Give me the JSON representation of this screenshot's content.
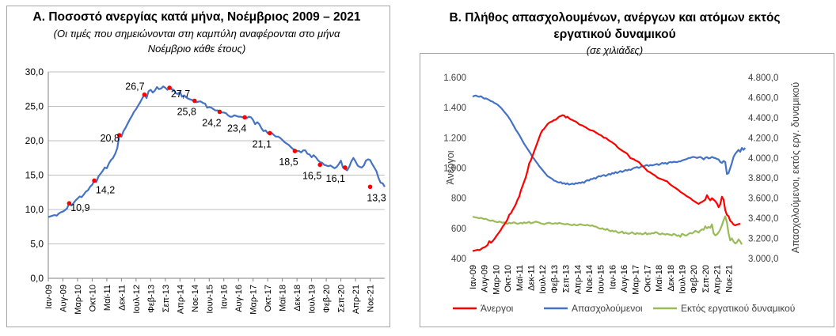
{
  "chart_data": [
    {
      "type": "line",
      "title": "Α. Ποσοστό ανεργίας κατά μήνα, Νοέμβριος 2009 – 2021",
      "subtitle_lines": [
        "(Οι τιμές που σημειώνονται στη καμπύλη αναφέρονται στο μήνα",
        "Νοέμβριο κάθε έτους)"
      ],
      "ylim": [
        0,
        30
      ],
      "yticks": [
        "0,0",
        "5,0",
        "10,0",
        "15,0",
        "20,0",
        "25,0",
        "30,0"
      ],
      "grid": true,
      "legend": "none",
      "colors": {
        "line": "#4472c4",
        "marker": "#ff0000"
      },
      "x_tick_labels": [
        "Ιαν-09",
        "Αυγ-09",
        "Μαρ-10",
        "Οκτ-10",
        "Μαϊ-11",
        "Δεκ-11",
        "Ιουλ-12",
        "Φεβ-13",
        "Σεπ-13",
        "Απρ-14",
        "Νοε-14",
        "Ιουν-15",
        "Ιαν-16",
        "Αυγ-16",
        "Μαρ-17",
        "Οκτ-17",
        "Μαϊ-18",
        "Δεκ-18",
        "Ιουλ-19",
        "Φεβ-20",
        "Σεπ-20",
        "Απρ-21",
        "Νοε-21"
      ],
      "x_start": "Ιαν-09",
      "series": [
        {
          "values": [
            8.9,
            9.0,
            9.1,
            9.2,
            9.1,
            9.4,
            9.6,
            9.7,
            9.9,
            10.2,
            10.9,
            10.6,
            10.9,
            11.3,
            11.6,
            11.9,
            11.8,
            12.2,
            12.6,
            12.8,
            13.3,
            13.6,
            14.2,
            14.0,
            14.8,
            15.2,
            15.6,
            16.1,
            16.0,
            16.7,
            17.2,
            17.5,
            18.1,
            18.9,
            20.8,
            20.6,
            21.4,
            21.9,
            22.5,
            23.1,
            23.6,
            24.2,
            24.6,
            25.1,
            25.6,
            26.2,
            26.7,
            26.2,
            27.2,
            27.4,
            27.0,
            27.3,
            27.8,
            27.5,
            27.6,
            27.9,
            27.7,
            27.4,
            27.8,
            27.5,
            27.4,
            26.9,
            26.8,
            27.1,
            26.4,
            26.6,
            26.3,
            26.1,
            26.0,
            25.9,
            25.8,
            25.6,
            25.7,
            25.7,
            25.5,
            25.4,
            24.8,
            24.9,
            24.8,
            24.6,
            24.4,
            24.4,
            24.2,
            24.1,
            24.1,
            24.0,
            23.7,
            23.5,
            23.5,
            23.7,
            23.6,
            23.5,
            23.5,
            23.4,
            23.4,
            23.3,
            23.5,
            23.4,
            23.0,
            22.4,
            22.7,
            22.4,
            21.8,
            21.4,
            21.5,
            21.1,
            21.1,
            21.1,
            20.8,
            20.6,
            20.6,
            20.4,
            20.1,
            19.8,
            19.6,
            19.4,
            19.1,
            18.8,
            18.7,
            18.5,
            18.5,
            18.3,
            18.6,
            18.6,
            18.1,
            18.0,
            17.6,
            17.9,
            17.6,
            17.2,
            16.9,
            16.8,
            16.5,
            16.4,
            16.3,
            16.4,
            16.2,
            16.0,
            16.2,
            16.6,
            17.1,
            16.1,
            15.9,
            15.7,
            16.2,
            17.0,
            17.5,
            17.0,
            16.4,
            16.2,
            16.1,
            16.4,
            17.1,
            17.3,
            17.2,
            16.6,
            16.1,
            15.6,
            14.6,
            13.9,
            13.8,
            13.3
          ]
        }
      ],
      "annotations": [
        {
          "x": "Νοε-09",
          "value": 10.9,
          "label": "10,9"
        },
        {
          "x": "Νοε-10",
          "value": 14.2,
          "label": "14,2"
        },
        {
          "x": "Νοε-11",
          "value": 20.8,
          "label": "20,8"
        },
        {
          "x": "Νοε-12",
          "value": 26.7,
          "label": "26,7"
        },
        {
          "x": "Νοε-13",
          "value": 27.7,
          "label": "27,7"
        },
        {
          "x": "Νοε-14",
          "value": 25.8,
          "label": "25,8"
        },
        {
          "x": "Νοε-15",
          "value": 24.2,
          "label": "24,2"
        },
        {
          "x": "Νοε-16",
          "value": 23.4,
          "label": "23,4"
        },
        {
          "x": "Νοε-17",
          "value": 21.1,
          "label": "21,1"
        },
        {
          "x": "Νοε-18",
          "value": 18.5,
          "label": "18,5"
        },
        {
          "x": "Νοε-19",
          "value": 16.5,
          "label": "16,5"
        },
        {
          "x": "Νοε-20",
          "value": 16.1,
          "label": "16,1"
        },
        {
          "x": "Νοε-21",
          "value": 13.3,
          "label": "13,3"
        }
      ]
    },
    {
      "type": "line",
      "title_lines": [
        "Β. Πλήθος απασχολουμένων, ανέργων και ατόμων εκτός",
        "εργατικού δυναμικού"
      ],
      "subtitle": "(σε χιλιάδες)",
      "ylabel_left": "Άνεργοι",
      "ylabel_right": "Απασχολούμενοι, εκτός εργ. δυναμικού",
      "ylim_left": [
        400,
        1600
      ],
      "ylim_right": [
        3000,
        4800
      ],
      "yticks_left": [
        "400",
        "600",
        "800",
        "1.000",
        "1.200",
        "1.400",
        "1.600"
      ],
      "yticks_right": [
        "3.000,0",
        "3.200,0",
        "3.400,0",
        "3.600,0",
        "3.800,0",
        "4.000,0",
        "4.200,0",
        "4.400,0",
        "4.600,0",
        "4.800,0"
      ],
      "grid": false,
      "legend": "bottom",
      "x_tick_labels": [
        "Ιαν-09",
        "Αυγ-09",
        "Μαρ-10",
        "Οκτ-10",
        "Μαϊ-11",
        "Δεκ-11",
        "Ιουλ-12",
        "Φεβ-13",
        "Σεπ-13",
        "Απρ-14",
        "Νοε-14",
        "Ιουν-15",
        "Ιαν-16",
        "Αυγ-16",
        "Μαρ-17",
        "Οκτ-17",
        "Μαϊ-18",
        "Δεκ-18",
        "Ιουλ-19",
        "Φεβ-20",
        "Σεπ-20",
        "Απρ-21",
        "Νοε-21"
      ],
      "series": [
        {
          "name": "Άνεργοι",
          "axis": "left",
          "color": "#ff0000",
          "values": [
            450,
            452,
            455,
            458,
            455,
            462,
            470,
            474,
            480,
            490,
            515,
            505,
            515,
            528,
            545,
            560,
            575,
            590,
            610,
            625,
            640,
            660,
            690,
            700,
            720,
            740,
            760,
            790,
            810,
            850,
            880,
            910,
            940,
            980,
            1030,
            1050,
            1080,
            1110,
            1140,
            1170,
            1200,
            1230,
            1250,
            1260,
            1275,
            1290,
            1300,
            1305,
            1310,
            1318,
            1320,
            1330,
            1340,
            1345,
            1350,
            1348,
            1335,
            1340,
            1330,
            1322,
            1318,
            1312,
            1308,
            1300,
            1290,
            1285,
            1282,
            1275,
            1270,
            1262,
            1255,
            1250,
            1248,
            1244,
            1236,
            1230,
            1222,
            1218,
            1210,
            1200,
            1200,
            1192,
            1183,
            1176,
            1170,
            1162,
            1154,
            1140,
            1130,
            1122,
            1115,
            1108,
            1102,
            1095,
            1080,
            1065,
            1062,
            1058,
            1050,
            1045,
            1040,
            1028,
            1015,
            1005,
            995,
            982,
            975,
            970,
            962,
            955,
            948,
            938,
            932,
            928,
            924,
            920,
            915,
            912,
            900,
            890,
            882,
            875,
            868,
            860,
            852,
            842,
            835,
            828,
            820,
            812,
            806,
            800,
            790,
            782,
            775,
            768,
            762,
            770,
            775,
            782,
            790,
            820,
            800,
            785,
            800,
            790,
            780,
            765,
            740,
            760,
            810,
            790,
            720,
            690,
            680,
            650,
            640,
            625,
            620,
            625,
            628,
            630
          ]
        },
        {
          "name": "Απασχολούμενοι",
          "axis": "right",
          "color": "#4472c4",
          "values": [
            4610,
            4618,
            4620,
            4612,
            4608,
            4614,
            4600,
            4590,
            4592,
            4585,
            4575,
            4565,
            4560,
            4548,
            4540,
            4530,
            4515,
            4500,
            4480,
            4460,
            4440,
            4420,
            4395,
            4370,
            4340,
            4310,
            4280,
            4255,
            4230,
            4200,
            4170,
            4140,
            4115,
            4090,
            4065,
            4040,
            4010,
            3990,
            3965,
            3945,
            3920,
            3900,
            3880,
            3860,
            3840,
            3820,
            3810,
            3800,
            3790,
            3775,
            3770,
            3760,
            3755,
            3760,
            3745,
            3750,
            3740,
            3748,
            3735,
            3740,
            3745,
            3738,
            3750,
            3745,
            3755,
            3750,
            3760,
            3752,
            3770,
            3780,
            3775,
            3790,
            3790,
            3800,
            3795,
            3810,
            3820,
            3815,
            3825,
            3830,
            3820,
            3830,
            3840,
            3835,
            3850,
            3845,
            3860,
            3850,
            3860,
            3870,
            3860,
            3870,
            3880,
            3875,
            3885,
            3880,
            3890,
            3900,
            3905,
            3910,
            3900,
            3910,
            3920,
            3915,
            3925,
            3930,
            3920,
            3930,
            3925,
            3930,
            3935,
            3940,
            3930,
            3940,
            3950,
            3945,
            3950,
            3940,
            3955,
            3960,
            3955,
            3962,
            3960,
            3958,
            3965,
            3965,
            3975,
            3980,
            3985,
            3990,
            4000,
            4000,
            4008,
            4010,
            4005,
            4000,
            4005,
            4010,
            4000,
            3985,
            4002,
            4008,
            3995,
            4000,
            4010,
            4002,
            3998,
            3990,
            3985,
            3960,
            3950,
            3970,
            3960,
            3840,
            3850,
            3900,
            3950,
            4010,
            4040,
            4060,
            4080,
            4060,
            4100,
            4080,
            4100
          ]
        },
        {
          "name": "Εκτός εργατικού δυναμικού",
          "axis": "right",
          "color": "#9bbb59",
          "values": [
            3415,
            3412,
            3408,
            3405,
            3400,
            3405,
            3398,
            3392,
            3395,
            3385,
            3378,
            3375,
            3380,
            3370,
            3365,
            3360,
            3368,
            3362,
            3355,
            3360,
            3350,
            3345,
            3355,
            3350,
            3355,
            3360,
            3352,
            3345,
            3350,
            3355,
            3348,
            3360,
            3352,
            3358,
            3365,
            3350,
            3355,
            3360,
            3368,
            3362,
            3358,
            3350,
            3345,
            3340,
            3348,
            3352,
            3356,
            3350,
            3345,
            3348,
            3352,
            3345,
            3355,
            3350,
            3345,
            3342,
            3340,
            3345,
            3338,
            3335,
            3330,
            3340,
            3332,
            3330,
            3338,
            3340,
            3335,
            3332,
            3330,
            3335,
            3328,
            3325,
            3330,
            3320,
            3318,
            3310,
            3300,
            3295,
            3302,
            3290,
            3285,
            3295,
            3280,
            3270,
            3278,
            3268,
            3275,
            3262,
            3255,
            3262,
            3268,
            3250,
            3258,
            3250,
            3245,
            3252,
            3262,
            3248,
            3242,
            3255,
            3246,
            3250,
            3240,
            3245,
            3258,
            3240,
            3248,
            3245,
            3252,
            3250,
            3262,
            3258,
            3245,
            3240,
            3250,
            3244,
            3238,
            3245,
            3240,
            3236,
            3230,
            3245,
            3238,
            3225,
            3232,
            3215,
            3245,
            3238,
            3228,
            3232,
            3245,
            3255,
            3248,
            3260,
            3275,
            3268,
            3258,
            3278,
            3290,
            3285,
            3320,
            3300,
            3315,
            3305,
            3340,
            3250,
            3230,
            3240,
            3260,
            3290,
            3330,
            3380,
            3420,
            3360,
            3250,
            3180,
            3200,
            3170,
            3150,
            3160,
            3190,
            3170,
            3140
          ]
        }
      ]
    }
  ]
}
